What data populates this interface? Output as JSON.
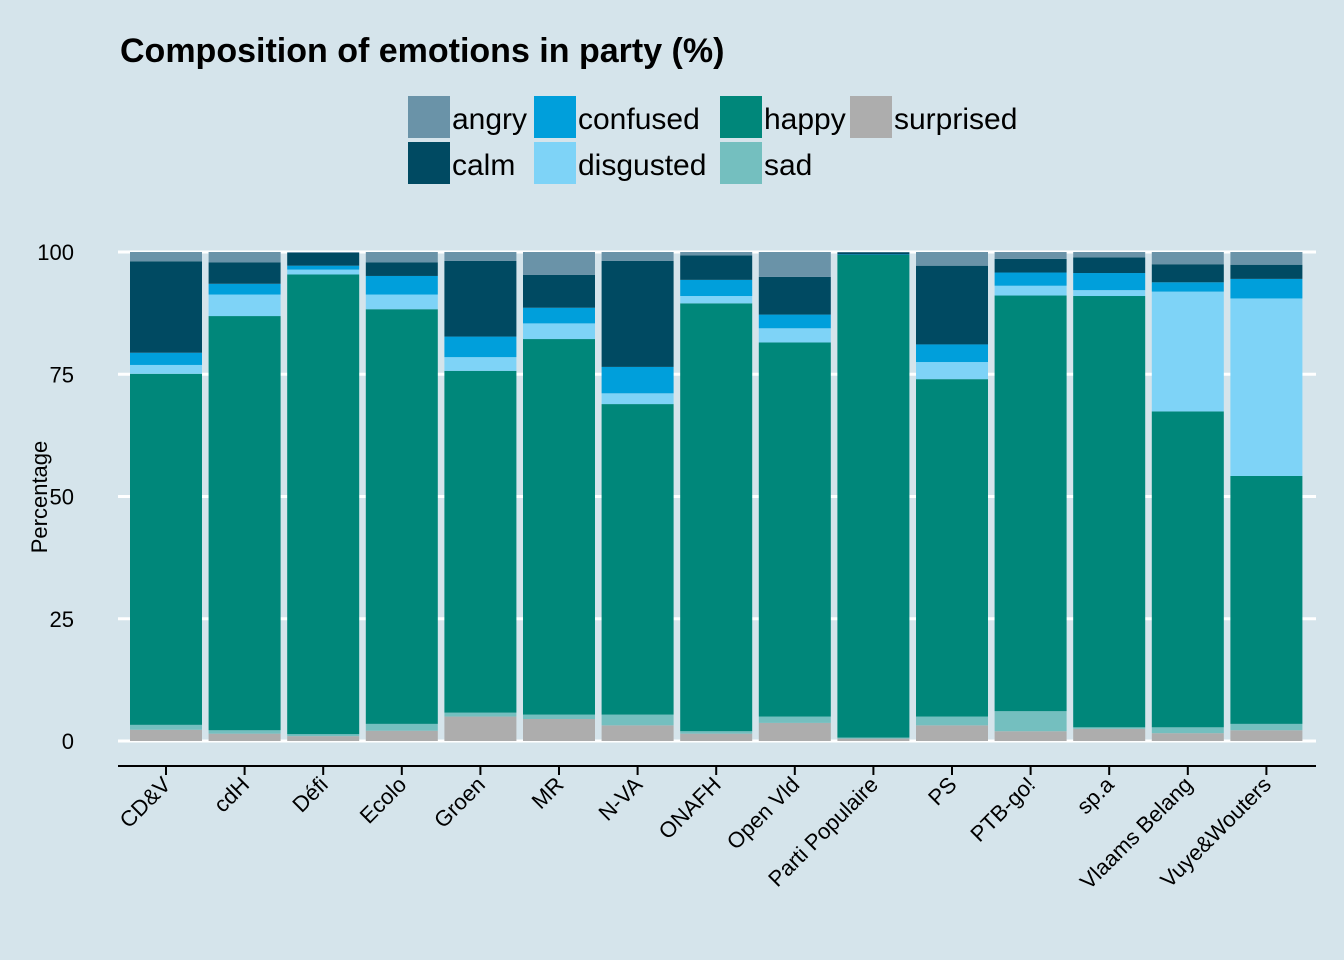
{
  "chart_data": {
    "type": "bar",
    "stacked": true,
    "title": "Composition of emotions in party (%)",
    "xlabel": "",
    "ylabel": "Percentage",
    "ylim": [
      0,
      100
    ],
    "yticks": [
      0,
      25,
      50,
      75,
      100
    ],
    "grid": true,
    "legend_position": "top",
    "categories": [
      "CD&V",
      "cdH",
      "Défi",
      "Ecolo",
      "Groen",
      "MR",
      "N-VA",
      "ONAFH",
      "Open Vld",
      "Parti Populaire",
      "PS",
      "PTB-go!",
      "sp.a",
      "Vlaams Belang",
      "Vuye&Wouters"
    ],
    "stack_order": [
      "surprised",
      "sad",
      "happy",
      "disgusted",
      "confused",
      "calm",
      "angry"
    ],
    "legend_order": [
      "angry",
      "calm",
      "confused",
      "disgusted",
      "happy",
      "sad",
      "surprised"
    ],
    "colors": {
      "angry": "#6a93a8",
      "calm": "#004a62",
      "confused": "#009fdb",
      "disgusted": "#7ed3f7",
      "happy": "#00877a",
      "sad": "#74bfbf",
      "surprised": "#adadad"
    },
    "series": [
      {
        "name": "surprised",
        "values": [
          2.3,
          1.5,
          1.0,
          2.1,
          5.0,
          4.5,
          3.2,
          1.5,
          3.7,
          0.5,
          3.2,
          2.0,
          2.5,
          1.6,
          2.2
        ]
      },
      {
        "name": "sad",
        "values": [
          1.0,
          0.7,
          0.4,
          1.4,
          0.8,
          0.9,
          2.2,
          0.5,
          1.3,
          0.2,
          1.8,
          4.1,
          0.3,
          1.2,
          1.3
        ]
      },
      {
        "name": "happy",
        "values": [
          71.8,
          84.7,
          94.0,
          84.8,
          69.9,
          76.8,
          63.5,
          87.5,
          76.5,
          98.7,
          69.0,
          85.0,
          88.2,
          64.6,
          50.7
        ]
      },
      {
        "name": "disgusted",
        "values": [
          1.8,
          4.4,
          1.0,
          3.0,
          2.8,
          3.2,
          2.2,
          1.5,
          2.9,
          0.0,
          3.5,
          2.0,
          1.2,
          24.5,
          36.3
        ]
      },
      {
        "name": "confused",
        "values": [
          2.5,
          2.2,
          0.8,
          3.8,
          4.2,
          3.2,
          5.4,
          3.3,
          2.8,
          0.1,
          3.6,
          2.7,
          3.5,
          1.9,
          4.0
        ]
      },
      {
        "name": "calm",
        "values": [
          18.7,
          4.4,
          2.6,
          2.8,
          15.5,
          6.7,
          21.7,
          5.0,
          7.7,
          0.4,
          16.1,
          2.8,
          3.2,
          3.7,
          2.9
        ]
      },
      {
        "name": "angry",
        "values": [
          1.9,
          2.1,
          0.2,
          2.1,
          1.8,
          4.7,
          1.8,
          0.7,
          5.1,
          0.1,
          2.8,
          1.4,
          1.1,
          2.5,
          2.6
        ]
      }
    ]
  }
}
